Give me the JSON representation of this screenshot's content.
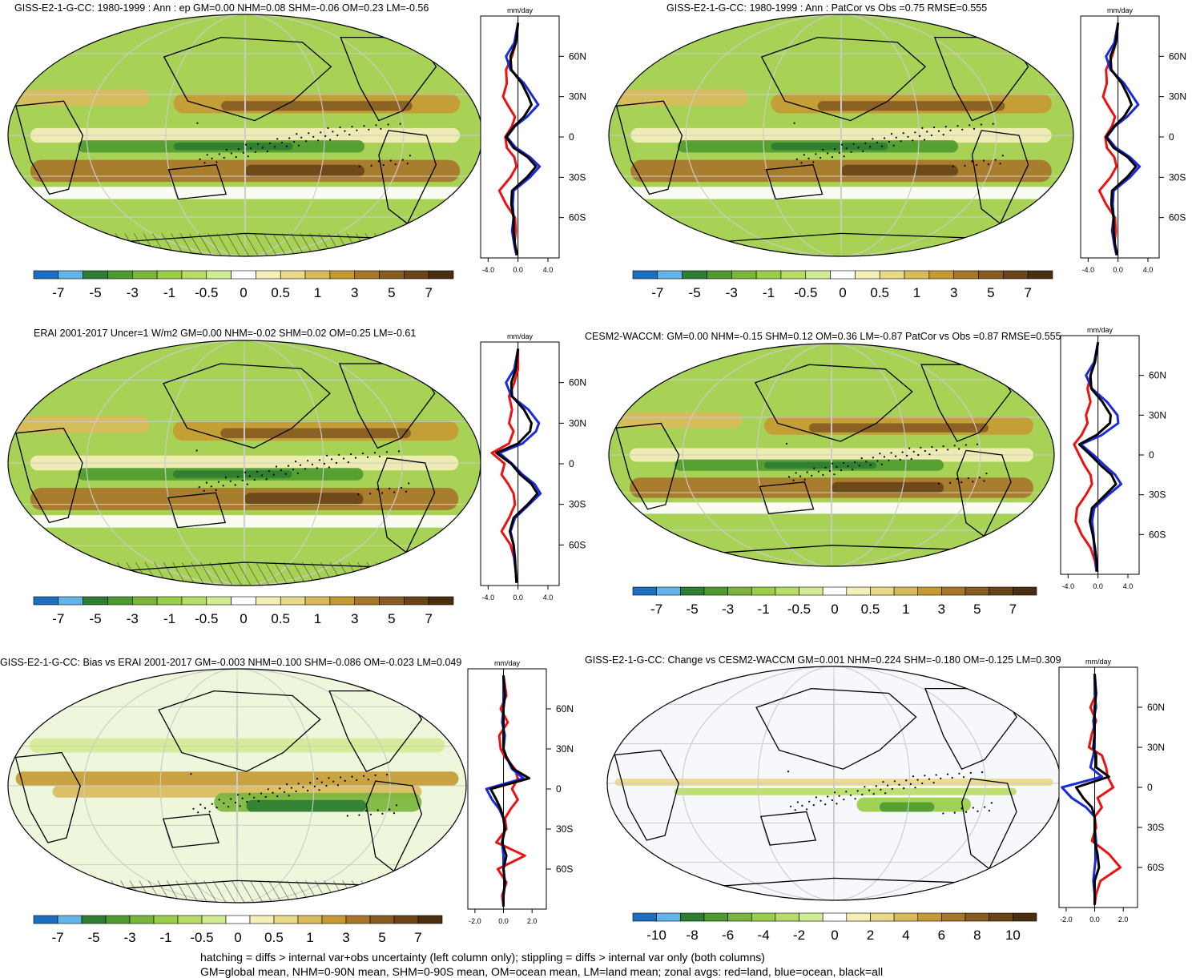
{
  "palette": {
    "diverging": [
      "#1c6fc0",
      "#63b4e8",
      "#2e7d32",
      "#4f9a2e",
      "#7bb53c",
      "#9acd4a",
      "#b7dc67",
      "#d2ec94",
      "#ffffff",
      "#f4eeb8",
      "#e9d98a",
      "#d9bb5c",
      "#c69a33",
      "#a8762a",
      "#875c22",
      "#6a4418",
      "#4a2e10"
    ],
    "blue_line": "#1a2bdc",
    "red_line": "#ee1111",
    "black_line": "#000000"
  },
  "colorbar_labels": {
    "standard": [
      "-7",
      "-5",
      "-3",
      "-1",
      "-0.5",
      "0",
      "0.5",
      "1",
      "3",
      "5",
      "7"
    ],
    "change": [
      "-10",
      "-8",
      "-6",
      "-4",
      "-2",
      "0",
      "2",
      "4",
      "6",
      "8",
      "10"
    ]
  },
  "zonal_unit": "mm/day",
  "lat_labels": [
    "60N",
    "30N",
    "0",
    "30S",
    "60S"
  ],
  "panels": [
    {
      "id": "p1",
      "title": "GISS-E2-1-G-CC: 1980-1999 : Ann : ep GM=0.00 NHM=0.08 SHM=-0.06 OM=0.23 LM=-0.56",
      "xticks": [
        "-4.0",
        "0.0",
        "4.0"
      ],
      "cbar": "standard",
      "pattern": "hatch"
    },
    {
      "id": "p2",
      "title": "GISS-E2-1-G-CC: 1980-1999 : Ann : PatCor vs Obs =0.75 RMSE=0.555",
      "xticks": [
        "-4.0",
        "0.0",
        "4.0"
      ],
      "cbar": "standard",
      "pattern": "stipple"
    },
    {
      "id": "p3",
      "title": "ERAI 2001-2017 Uncer=1 W/m2 GM=0.00 NHM=-0.02 SHM=0.02 OM=0.25 LM=-0.61",
      "xticks": [
        "-4.0",
        "0.0",
        "4.0"
      ],
      "cbar": "standard",
      "pattern": "hatch"
    },
    {
      "id": "p4",
      "title": "CESM2-WACCM: GM=0.00 NHM=-0.15 SHM=0.12 OM=0.36 LM=-0.87 PatCor vs Obs =0.87 RMSE=0.555",
      "xticks": [
        "-4.0",
        "0.0",
        "4.0"
      ],
      "cbar": "standard",
      "pattern": "stipple"
    },
    {
      "id": "p5",
      "title": "GISS-E2-1-G-CC: Bias vs ERAI 2001-2017 GM=-0.003 NHM=0.100 SHM=-0.086 OM=-0.023 LM=0.049",
      "xticks": [
        "-2.0",
        "0.0",
        "2.0"
      ],
      "cbar": "standard",
      "pattern": "hatch"
    },
    {
      "id": "p6",
      "title": "GISS-E2-1-G-CC: Change vs CESM2-WACCM GM=0.001 NHM=0.224 SHM=-0.180 OM=-0.125 LM=0.309",
      "xticks": [
        "-2.0",
        "0.0",
        "2.0"
      ],
      "cbar": "change",
      "pattern": "stipple"
    }
  ],
  "footer": {
    "line1": "hatching = diffs > internal var+obs uncertainty (left column only); stippling = diffs > internal var only (both columns)",
    "line2": "GM=global mean, NHM=0-90N mean, SHM=0-90S mean, OM=ocean mean, LM=land mean; zonal avgs: red=land, blue=ocean, black=all"
  },
  "chart_data": [
    {
      "type": "line",
      "panel": "p1",
      "title": "GISS-E2-1-G-CC: 1980-1999 : Ann : ep GM=0.00 NHM=0.08 SHM=-0.06 OM=0.23 LM=-0.56",
      "xlabel": "mm/day",
      "xlim": [
        -5,
        5.5
      ],
      "ylim": [
        -90,
        90
      ],
      "y": [
        85,
        70,
        60,
        50,
        40,
        30,
        24,
        15,
        8,
        0,
        -8,
        -15,
        -22,
        -30,
        -40,
        -50,
        -60,
        -70,
        -80,
        -88
      ],
      "series": [
        {
          "name": "land",
          "color": "#ee1111",
          "values": [
            0,
            -0.3,
            -0.8,
            -1.6,
            -1.5,
            -2.0,
            -1.4,
            -0.4,
            -0.8,
            -1.7,
            -1.5,
            -0.5,
            -0.2,
            -1.0,
            -2.5,
            -1.6,
            -0.4,
            -0.3,
            -0.5,
            -0.2
          ]
        },
        {
          "name": "ocean",
          "color": "#1a2bdc",
          "values": [
            0,
            -0.5,
            -1.6,
            -1.0,
            0.8,
            2.0,
            2.7,
            1.2,
            -0.4,
            -1.5,
            -0.3,
            1.6,
            2.9,
            1.6,
            -0.6,
            -0.7,
            -0.6,
            -0.8,
            -0.5,
            -0.2
          ]
        },
        {
          "name": "all",
          "color": "#000000",
          "values": [
            0,
            -0.3,
            -1.0,
            -0.9,
            0.5,
            1.4,
            1.8,
            0.8,
            -0.5,
            -1.6,
            -0.6,
            1.3,
            2.4,
            1.2,
            -0.8,
            -0.9,
            -0.6,
            -0.6,
            -0.4,
            -0.1
          ]
        }
      ]
    },
    {
      "type": "line",
      "panel": "p2",
      "title": "GISS-E2-1-G-CC: 1980-1999 : Ann : PatCor vs Obs =0.75 RMSE=0.555",
      "xlabel": "mm/day",
      "xlim": [
        -5,
        5.5
      ],
      "ylim": [
        -90,
        90
      ],
      "y": [
        85,
        70,
        60,
        50,
        40,
        30,
        24,
        15,
        8,
        0,
        -8,
        -15,
        -22,
        -30,
        -40,
        -50,
        -60,
        -70,
        -80,
        -88
      ],
      "series": [
        {
          "name": "land",
          "color": "#ee1111",
          "values": [
            0,
            -0.3,
            -0.8,
            -1.6,
            -1.5,
            -2.0,
            -1.4,
            -0.4,
            -0.8,
            -1.7,
            -1.5,
            -0.5,
            -0.2,
            -1.0,
            -2.5,
            -1.6,
            -0.4,
            -0.3,
            -0.5,
            -0.2
          ]
        },
        {
          "name": "ocean",
          "color": "#1a2bdc",
          "values": [
            0,
            -0.5,
            -1.6,
            -1.0,
            0.8,
            2.0,
            2.7,
            1.2,
            -0.4,
            -1.5,
            -0.3,
            1.6,
            2.9,
            1.6,
            -0.6,
            -0.7,
            -0.6,
            -0.8,
            -0.5,
            -0.2
          ]
        },
        {
          "name": "all",
          "color": "#000000",
          "values": [
            0,
            -0.3,
            -1.0,
            -0.9,
            0.5,
            1.4,
            1.8,
            0.8,
            -0.5,
            -1.6,
            -0.6,
            1.3,
            2.4,
            1.2,
            -0.8,
            -0.9,
            -0.6,
            -0.6,
            -0.4,
            -0.1
          ]
        }
      ]
    },
    {
      "type": "line",
      "panel": "p3",
      "title": "ERAI 2001-2017 Uncer=1 W/m2 GM=0.00 NHM=-0.02 SHM=0.02 OM=0.25 LM=-0.61",
      "xlabel": "mm/day",
      "xlim": [
        -5,
        5.5
      ],
      "ylim": [
        -90,
        90
      ],
      "y": [
        85,
        70,
        60,
        50,
        40,
        30,
        24,
        15,
        8,
        0,
        -8,
        -15,
        -22,
        -30,
        -40,
        -50,
        -60,
        -70,
        -80,
        -88
      ],
      "series": [
        {
          "name": "land",
          "color": "#ee1111",
          "values": [
            0,
            0.0,
            -0.5,
            -1.2,
            -0.8,
            -1.2,
            -0.6,
            -1.2,
            -3.5,
            -1.8,
            -2.2,
            -1.3,
            -0.6,
            -0.4,
            -1.2,
            -2.2,
            -1.0,
            -0.5,
            -0.3,
            -0.2
          ]
        },
        {
          "name": "ocean",
          "color": "#1a2bdc",
          "values": [
            0,
            -0.5,
            -1.6,
            -0.9,
            1.4,
            2.8,
            2.4,
            0.6,
            -2.5,
            -0.8,
            0.6,
            2.2,
            3.0,
            1.5,
            -0.4,
            -1.0,
            -0.6,
            -0.5,
            -0.3,
            -0.2
          ]
        },
        {
          "name": "all",
          "color": "#000000",
          "values": [
            0,
            -0.3,
            -0.9,
            -0.8,
            0.8,
            1.8,
            1.6,
            0.0,
            -2.9,
            -0.9,
            0.3,
            1.8,
            2.6,
            1.3,
            -0.6,
            -1.1,
            -0.6,
            -0.4,
            -0.3,
            -0.2
          ]
        }
      ]
    },
    {
      "type": "line",
      "panel": "p4",
      "title": "CESM2-WACCM: GM=0.00 NHM=-0.15 SHM=0.12 OM=0.36 LM=-0.87 PatCor vs Obs =0.87 RMSE=0.555",
      "xlabel": "mm/day",
      "xlim": [
        -5,
        5.5
      ],
      "ylim": [
        -90,
        90
      ],
      "y": [
        85,
        70,
        60,
        50,
        40,
        30,
        24,
        15,
        8,
        0,
        -8,
        -15,
        -22,
        -30,
        -40,
        -50,
        -60,
        -70,
        -80,
        -88
      ],
      "series": [
        {
          "name": "land",
          "color": "#ee1111",
          "values": [
            0,
            -0.5,
            -1.0,
            -1.4,
            -1.0,
            -1.6,
            -1.4,
            -2.2,
            -3.2,
            -2.5,
            -1.8,
            -1.0,
            -0.8,
            -1.6,
            -2.8,
            -3.0,
            -2.2,
            -1.0,
            -0.4,
            -0.2
          ]
        },
        {
          "name": "ocean",
          "color": "#1a2bdc",
          "values": [
            0,
            -0.5,
            -1.6,
            -0.8,
            1.2,
            2.6,
            2.7,
            0.5,
            -2.3,
            -0.6,
            0.9,
            2.3,
            3.1,
            1.4,
            -0.5,
            -0.8,
            -0.6,
            -0.5,
            -0.3,
            -0.2
          ]
        },
        {
          "name": "all",
          "color": "#000000",
          "values": [
            0,
            -0.4,
            -1.0,
            -0.9,
            0.6,
            1.7,
            1.6,
            -0.2,
            -2.5,
            -1.0,
            0.4,
            1.8,
            2.4,
            1.0,
            -0.8,
            -1.1,
            -0.7,
            -0.4,
            -0.2,
            -0.1
          ]
        }
      ]
    },
    {
      "type": "line",
      "panel": "p5",
      "title": "GISS-E2-1-G-CC: Bias vs ERAI 2001-2017 GM=-0.003 NHM=0.100 SHM=-0.086 OM=-0.023 LM=0.049",
      "xlabel": "mm/day",
      "xlim": [
        -2.5,
        3
      ],
      "ylim": [
        -90,
        90
      ],
      "y": [
        85,
        70,
        60,
        50,
        40,
        30,
        24,
        15,
        8,
        0,
        -8,
        -15,
        -22,
        -30,
        -40,
        -50,
        -60,
        -70,
        -80,
        -88
      ],
      "series": [
        {
          "name": "land",
          "color": "#ee1111",
          "values": [
            0,
            0.2,
            -0.2,
            0.3,
            -0.3,
            -0.2,
            0.1,
            0.8,
            1.0,
            0.6,
            1.0,
            0.5,
            0.1,
            0.2,
            -0.5,
            1.5,
            -0.4,
            0.2,
            -0.1,
            0.0
          ]
        },
        {
          "name": "ocean",
          "color": "#1a2bdc",
          "values": [
            0,
            0.0,
            0.0,
            -0.1,
            0.1,
            0.0,
            0.2,
            0.6,
            1.4,
            -1.2,
            -0.8,
            -0.3,
            0.0,
            0.1,
            -0.1,
            0.0,
            0.0,
            0.1,
            0.0,
            0.0
          ]
        },
        {
          "name": "all",
          "color": "#000000",
          "values": [
            0,
            0.1,
            0.0,
            0.0,
            0.0,
            0.0,
            0.2,
            0.7,
            1.8,
            -0.9,
            -0.5,
            -0.2,
            0.0,
            0.1,
            -0.1,
            0.2,
            0.0,
            0.1,
            0.0,
            0.0
          ]
        }
      ]
    },
    {
      "type": "line",
      "panel": "p6",
      "title": "GISS-E2-1-G-CC: Change vs CESM2-WACCM GM=0.001 NHM=0.224 SHM=-0.180 OM=-0.125 LM=0.309",
      "xlabel": "mm/day",
      "xlim": [
        -2.5,
        3
      ],
      "ylim": [
        -90,
        90
      ],
      "y": [
        85,
        70,
        60,
        50,
        40,
        30,
        24,
        15,
        8,
        0,
        -8,
        -15,
        -22,
        -30,
        -40,
        -50,
        -60,
        -70,
        -80,
        -88
      ],
      "series": [
        {
          "name": "land",
          "color": "#ee1111",
          "values": [
            0,
            0.1,
            -0.3,
            0.1,
            -0.2,
            -0.4,
            0.5,
            0.8,
            0.9,
            1.3,
            0.2,
            0.5,
            0.0,
            0.1,
            -0.2,
            1.0,
            1.8,
            0.4,
            0.1,
            0.0
          ]
        },
        {
          "name": "ocean",
          "color": "#1a2bdc",
          "values": [
            0,
            0.0,
            0.1,
            -0.1,
            0.0,
            0.0,
            -0.1,
            -0.3,
            0.5,
            -2.3,
            -1.6,
            -0.6,
            0.0,
            0.0,
            0.1,
            0.1,
            0.0,
            -0.1,
            0.0,
            0.0
          ]
        },
        {
          "name": "all",
          "color": "#000000",
          "values": [
            0,
            0.1,
            0.0,
            0.0,
            0.0,
            -0.1,
            0.1,
            0.1,
            1.0,
            -1.3,
            -0.8,
            -0.2,
            0.0,
            0.0,
            0.0,
            0.2,
            0.3,
            0.0,
            0.0,
            0.0
          ]
        }
      ]
    }
  ]
}
